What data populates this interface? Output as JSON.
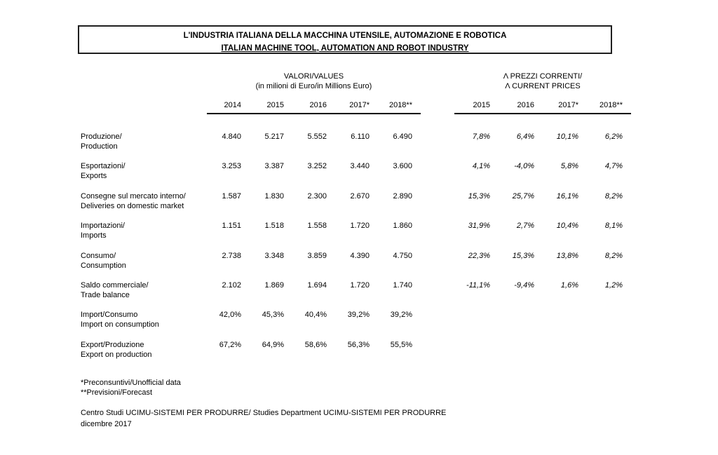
{
  "title": {
    "line1": "L'INDUSTRIA ITALIANA DELLA MACCHINA UTENSILE, AUTOMAZIONE E ROBOTICA",
    "line2": "ITALIAN MACHINE TOOL, AUTOMATION AND ROBOT INDUSTRY"
  },
  "values_header": {
    "line1": "VALORI/VALUES",
    "line2": "(in milioni di Euro/in Millions Euro)"
  },
  "prices_header": {
    "line1": "Λ PREZZI CORRENTI/",
    "line2": "Λ CURRENT PRICES"
  },
  "value_years": [
    "2014",
    "2015",
    "2016",
    "2017*",
    "2018**"
  ],
  "price_years": [
    "2015",
    "2016",
    "2017*",
    "2018**"
  ],
  "rows": [
    {
      "label_it": "Produzione/",
      "label_en": "Production",
      "values": [
        "4.840",
        "5.217",
        "5.552",
        "6.110",
        "6.490"
      ],
      "changes": [
        "7,8%",
        "6,4%",
        "10,1%",
        "6,2%"
      ]
    },
    {
      "label_it": "Esportazioni/",
      "label_en": "Exports",
      "values": [
        "3.253",
        "3.387",
        "3.252",
        "3.440",
        "3.600"
      ],
      "changes": [
        "4,1%",
        "-4,0%",
        "5,8%",
        "4,7%"
      ]
    },
    {
      "label_it": "Consegne sul mercato interno/",
      "label_en": "Deliveries on domestic market",
      "values": [
        "1.587",
        "1.830",
        "2.300",
        "2.670",
        "2.890"
      ],
      "changes": [
        "15,3%",
        "25,7%",
        "16,1%",
        "8,2%"
      ]
    },
    {
      "label_it": "Importazioni/",
      "label_en": "Imports",
      "values": [
        "1.151",
        "1.518",
        "1.558",
        "1.720",
        "1.860"
      ],
      "changes": [
        "31,9%",
        "2,7%",
        "10,4%",
        "8,1%"
      ]
    },
    {
      "label_it": "Consumo/",
      "label_en": "Consumption",
      "values": [
        "2.738",
        "3.348",
        "3.859",
        "4.390",
        "4.750"
      ],
      "changes": [
        "22,3%",
        "15,3%",
        "13,8%",
        "8,2%"
      ]
    },
    {
      "label_it": "Saldo commerciale/",
      "label_en": "Trade balance",
      "values": [
        "2.102",
        "1.869",
        "1.694",
        "1.720",
        "1.740"
      ],
      "changes": [
        "-11,1%",
        "-9,4%",
        "1,6%",
        "1,2%"
      ]
    },
    {
      "label_it": "Import/Consumo",
      "label_en": "Import on consumption",
      "values": [
        "42,0%",
        "45,3%",
        "40,4%",
        "39,2%",
        "39,2%"
      ],
      "changes": []
    },
    {
      "label_it": "Export/Produzione",
      "label_en": "Export on production",
      "values": [
        "67,2%",
        "64,9%",
        "58,6%",
        "56,3%",
        "55,5%"
      ],
      "changes": []
    }
  ],
  "footnotes": [
    "*Preconsuntivi/Unofficial data",
    "**Previsioni/Forecast"
  ],
  "source": {
    "line1": "Centro Studi UCIMU-SISTEMI PER PRODURRE/ Studies Department UCIMU-SISTEMI PER PRODURRE",
    "line2": "dicembre 2017"
  }
}
